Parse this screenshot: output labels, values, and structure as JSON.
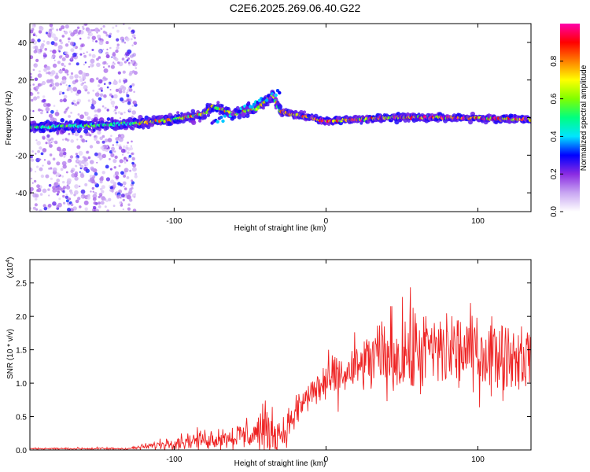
{
  "title": "C2E6.2025.269.06.40.G22",
  "chart_data": [
    {
      "type": "heatmap",
      "xlabel": "Height of straight line (km)",
      "ylabel": "Frequency (Hz)",
      "xlim": [
        -195,
        135
      ],
      "ylim": [
        -50,
        50
      ],
      "xticks": [
        -100,
        0,
        100
      ],
      "yticks": [
        -40,
        -20,
        0,
        20,
        40
      ],
      "colorbar": {
        "label": "Normalized spectral amplitude",
        "range": [
          0,
          1
        ],
        "ticks": [
          "0.0",
          "0.2",
          "0.4",
          "0.6",
          "0.8"
        ],
        "colors": [
          "#ffffff",
          "#c8a6f2",
          "#8a2be2",
          "#0000ff",
          "#00e5ff",
          "#00ff80",
          "#7fff00",
          "#ffff00",
          "#ff8000",
          "#ff0000",
          "#ff00aa"
        ]
      },
      "ridge": [
        {
          "x": -190,
          "f": -5
        },
        {
          "x": -150,
          "f": -4
        },
        {
          "x": -125,
          "f": -3
        },
        {
          "x": -100,
          "f": -1
        },
        {
          "x": -80,
          "f": 2
        },
        {
          "x": -75,
          "f": 6
        },
        {
          "x": -60,
          "f": 2
        },
        {
          "x": -45,
          "f": 5
        },
        {
          "x": -35,
          "f": 12
        },
        {
          "x": -30,
          "f": 3
        },
        {
          "x": -10,
          "f": 0
        },
        {
          "x": 0,
          "f": -2
        },
        {
          "x": 40,
          "f": 0
        },
        {
          "x": 80,
          "f": 0
        },
        {
          "x": 135,
          "f": -1
        }
      ]
    },
    {
      "type": "line",
      "xlabel": "Height of straight line (km)",
      "ylabel": "SNR (10 * v/v)",
      "multiplier": "(x10",
      "multiplier_exp": "4",
      "xlim": [
        -195,
        135
      ],
      "ylim": [
        0,
        2.85
      ],
      "xticks": [
        -100,
        0,
        100
      ],
      "yticks": [
        "0.0",
        "0.5",
        "1.0",
        "1.5",
        "2.0",
        "2.5"
      ],
      "color": "#ee2222",
      "envelope": [
        {
          "x": -195,
          "mean": 0.02,
          "amp": 0.02
        },
        {
          "x": -130,
          "mean": 0.02,
          "amp": 0.03
        },
        {
          "x": -115,
          "mean": 0.06,
          "amp": 0.08
        },
        {
          "x": -100,
          "mean": 0.12,
          "amp": 0.18
        },
        {
          "x": -80,
          "mean": 0.16,
          "amp": 0.22
        },
        {
          "x": -60,
          "mean": 0.2,
          "amp": 0.28
        },
        {
          "x": -40,
          "mean": 0.28,
          "amp": 0.6
        },
        {
          "x": -28,
          "mean": 0.25,
          "amp": 0.35
        },
        {
          "x": -20,
          "mean": 0.55,
          "amp": 0.4
        },
        {
          "x": -10,
          "mean": 0.85,
          "amp": 0.45
        },
        {
          "x": 0,
          "mean": 1.0,
          "amp": 0.5
        },
        {
          "x": 15,
          "mean": 1.15,
          "amp": 0.6
        },
        {
          "x": 30,
          "mean": 1.35,
          "amp": 0.8
        },
        {
          "x": 50,
          "mean": 1.45,
          "amp": 1.1
        },
        {
          "x": 80,
          "mean": 1.5,
          "amp": 0.95
        },
        {
          "x": 110,
          "mean": 1.45,
          "amp": 0.9
        },
        {
          "x": 135,
          "mean": 1.4,
          "amp": 0.7
        }
      ]
    }
  ]
}
